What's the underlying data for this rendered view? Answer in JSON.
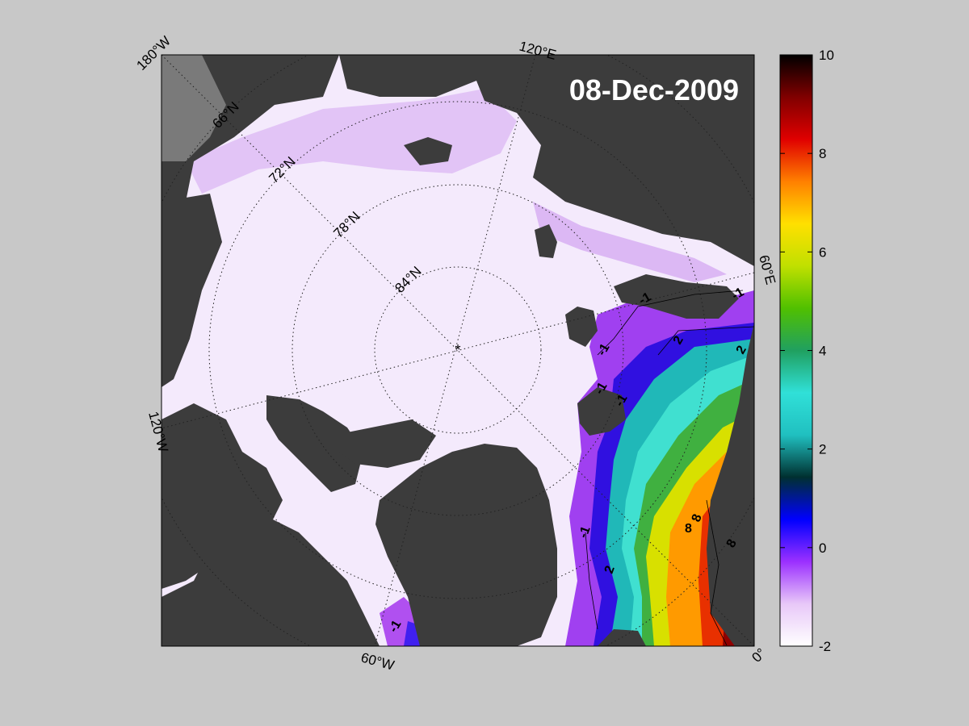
{
  "map": {
    "date_label": "08-Dec-2009",
    "colors": {
      "figure_background": "#c8c8c8",
      "land": "#3c3c3c",
      "land_shelf": "#7a7a7a",
      "ice": "#f4eafc",
      "graticule": "#222222"
    },
    "graticule": {
      "latitude_labels": [
        "66°N",
        "72°N",
        "78°N",
        "84°N"
      ],
      "longitude_labels": [
        "180°W",
        "120°E",
        "60°E",
        "0°",
        "60°W",
        "120°W"
      ]
    },
    "contours": {
      "labels": [
        "-1",
        "-1",
        "-1",
        "-1",
        "-1",
        "-1",
        "-1",
        "2",
        "2",
        "2",
        "8",
        "8",
        "8"
      ]
    }
  },
  "colorbar": {
    "ticks": [
      "10",
      "8",
      "6",
      "4",
      "2",
      "0",
      "-2"
    ],
    "range": [
      -2,
      10
    ],
    "stops": [
      "#ffffff",
      "#e8c8f8",
      "#9b30ff",
      "#0000ff",
      "#003030",
      "#20c0c0",
      "#30e0d8",
      "#20a060",
      "#50c000",
      "#c0e000",
      "#ffe000",
      "#ff8000",
      "#e00000",
      "#800000",
      "#000000"
    ]
  }
}
